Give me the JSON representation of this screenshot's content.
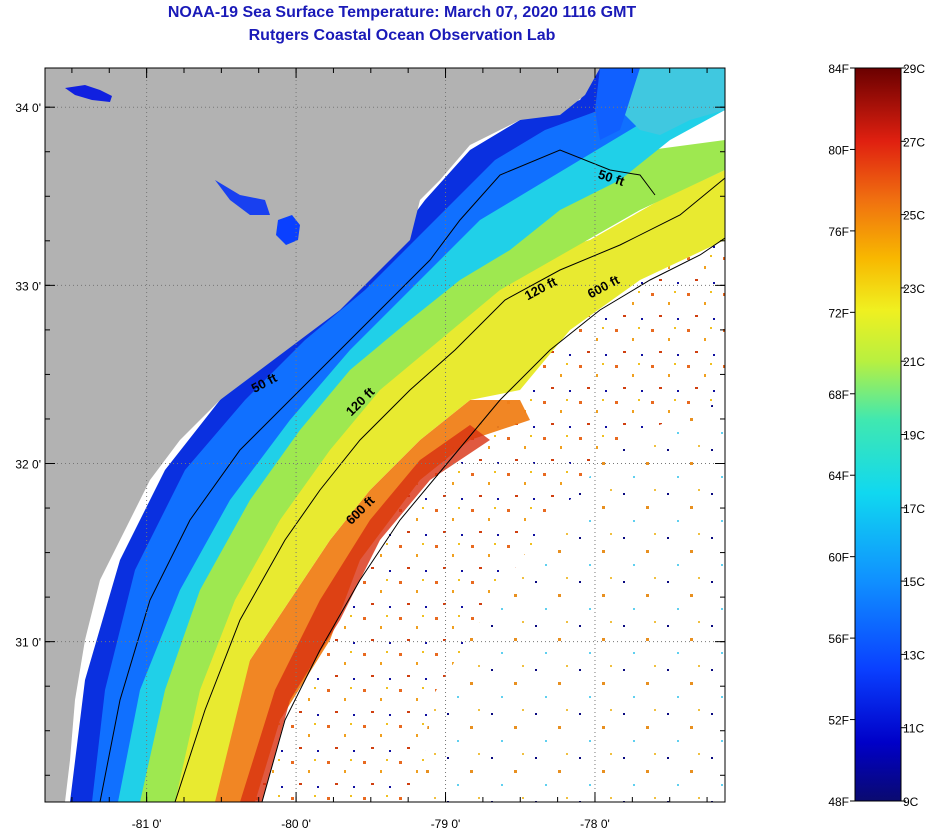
{
  "header": {
    "title": "NOAA-19 Sea Surface Temperature:  March 07, 2020 1116 GMT",
    "subtitle": "Rutgers Coastal Ocean Observation Lab"
  },
  "map": {
    "lon_range": [
      -81.68,
      -77.13
    ],
    "lat_range": [
      30.1,
      34.22
    ],
    "lon_ticks": [
      {
        "value": -81,
        "label": "-81 0'"
      },
      {
        "value": -80,
        "label": "-80 0'"
      },
      {
        "value": -79,
        "label": "-79 0'"
      },
      {
        "value": -78,
        "label": "-78 0'"
      }
    ],
    "lat_ticks": [
      {
        "value": 34,
        "label": "34 0'"
      },
      {
        "value": 33,
        "label": "33 0'"
      },
      {
        "value": 32,
        "label": "32 0'"
      },
      {
        "value": 31,
        "label": "31 0'"
      }
    ],
    "contour_labels": [
      {
        "text": "50 ft",
        "lon": -77.9,
        "lat": 33.58,
        "angle": 18
      },
      {
        "text": "120 ft",
        "lon": -78.35,
        "lat": 32.96,
        "angle": -28
      },
      {
        "text": "600 ft",
        "lon": -77.93,
        "lat": 32.97,
        "angle": -28
      },
      {
        "text": "50 ft",
        "lon": -80.2,
        "lat": 32.43,
        "angle": -28
      },
      {
        "text": "120 ft",
        "lon": -79.55,
        "lat": 32.33,
        "angle": -45
      },
      {
        "text": "600 ft",
        "lon": -79.55,
        "lat": 31.72,
        "angle": -45
      }
    ]
  },
  "colorbar": {
    "fahrenheit_labels": [
      "84F",
      "80F",
      "76F",
      "72F",
      "68F",
      "64F",
      "60F",
      "56F",
      "52F",
      "48F"
    ],
    "celsius_labels": [
      "29C",
      "27C",
      "25C",
      "23C",
      "21C",
      "19C",
      "17C",
      "15C",
      "13C",
      "11C",
      "9C"
    ],
    "colors": [
      "#0a0a70",
      "#0000c8",
      "#0a40ff",
      "#1090ff",
      "#10d8f0",
      "#40e8b0",
      "#b8f040",
      "#f0f020",
      "#f8b800",
      "#f07010",
      "#e02010",
      "#a00808",
      "#6a0000"
    ]
  },
  "colors": {
    "land": "#b2b2b2",
    "title": "#1a1ab8",
    "cloud": "#ffffff"
  }
}
